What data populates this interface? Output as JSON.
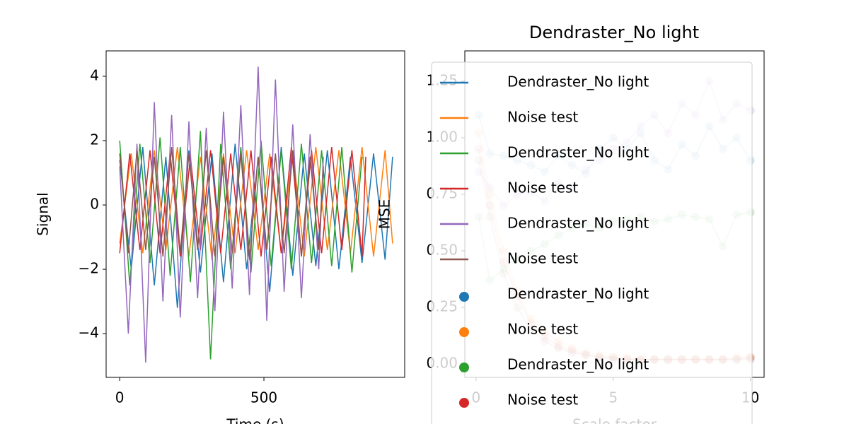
{
  "chart_data": [
    {
      "type": "line",
      "xlabel": "Time (s)",
      "ylabel": "Signal",
      "xlim": [
        -47,
        988
      ],
      "ylim": [
        -5.36,
        4.79
      ],
      "xticks": [
        0,
        500
      ],
      "yticks": [
        {
          "value": -4,
          "label": "−4"
        },
        {
          "value": -2,
          "label": "−2"
        },
        0,
        2,
        4
      ],
      "series": [
        {
          "color": "#1f77b4",
          "x": [
            0,
            40,
            80,
            120,
            160,
            200,
            240,
            280,
            320,
            360,
            400,
            440,
            480,
            520,
            560,
            600,
            640,
            680,
            720,
            760,
            800,
            840,
            880,
            920,
            946
          ],
          "values": [
            1.4,
            -2.0,
            1.8,
            -2.5,
            1.5,
            -3.2,
            1.7,
            -2.1,
            1.6,
            -2.4,
            1.9,
            -2.0,
            1.5,
            -2.7,
            1.8,
            -2.2,
            1.6,
            -1.9,
            1.7,
            -2.0,
            1.5,
            -1.8,
            1.6,
            -1.7,
            1.5
          ]
        },
        {
          "color": "#ff7f0e",
          "x": [
            0,
            40,
            80,
            120,
            160,
            200,
            240,
            280,
            320,
            360,
            400,
            440,
            480,
            520,
            560,
            600,
            640,
            680,
            720,
            760,
            800,
            840,
            880,
            920,
            946
          ],
          "values": [
            -1.2,
            1.6,
            -1.5,
            1.7,
            -1.4,
            1.8,
            -1.6,
            1.5,
            -1.7,
            1.6,
            -1.5,
            1.7,
            -1.4,
            1.6,
            -1.5,
            1.7,
            -1.6,
            1.8,
            -1.4,
            1.7,
            -1.5,
            1.8,
            -1.6,
            1.7,
            -1.2
          ]
        },
        {
          "color": "#2ca02c",
          "x": [
            0,
            35,
            70,
            105,
            140,
            175,
            210,
            245,
            280,
            315,
            350,
            385,
            420,
            455,
            490,
            525,
            560,
            595,
            630,
            665,
            700,
            735,
            770,
            805,
            840
          ],
          "values": [
            2.0,
            -2.5,
            1.9,
            -1.8,
            2.1,
            -2.2,
            1.8,
            -2.4,
            2.3,
            -4.8,
            1.9,
            -2.0,
            1.8,
            -2.1,
            2.0,
            -1.9,
            1.7,
            -2.0,
            1.9,
            -1.8,
            1.7,
            -1.9,
            1.8,
            -2.1,
            1.5
          ]
        },
        {
          "color": "#d62728",
          "x": [
            0,
            35,
            70,
            105,
            140,
            175,
            210,
            245,
            280,
            315,
            350,
            385,
            420,
            455,
            490,
            525,
            560,
            595,
            630,
            665,
            700,
            735,
            770,
            805,
            840,
            853
          ],
          "values": [
            -1.5,
            1.6,
            -1.4,
            1.7,
            -1.5,
            1.6,
            -1.6,
            1.5,
            -1.4,
            1.7,
            -1.5,
            1.6,
            -1.4,
            1.7,
            -1.6,
            1.5,
            -1.5,
            1.8,
            -1.6,
            1.7,
            -1.5,
            1.8,
            -1.4,
            1.7,
            -1.6,
            1.5
          ]
        },
        {
          "color": "#9467bd",
          "x": [
            0,
            30,
            60,
            90,
            120,
            150,
            180,
            210,
            240,
            270,
            300,
            330,
            360,
            390,
            420,
            450,
            480,
            510,
            540,
            570,
            600,
            630,
            660,
            690,
            706
          ],
          "values": [
            1.2,
            -4.0,
            1.9,
            -4.9,
            3.2,
            -3.0,
            2.8,
            -3.5,
            2.6,
            -2.9,
            2.4,
            -3.3,
            2.9,
            -2.6,
            3.1,
            -2.8,
            4.3,
            -3.6,
            3.9,
            -2.7,
            2.5,
            -2.9,
            2.2,
            -2.0,
            1.5
          ]
        },
        {
          "color": "#8c564b",
          "x": [
            0,
            30,
            60,
            90,
            120,
            150,
            180,
            210,
            240,
            270,
            300,
            330,
            360,
            390,
            420,
            450,
            480,
            510,
            540,
            570,
            600,
            630,
            660,
            690,
            706
          ],
          "values": [
            1.6,
            -1.5,
            1.7,
            -1.4,
            1.5,
            -1.6,
            1.8,
            -1.5,
            1.6,
            -1.4,
            1.7,
            -1.6,
            1.5,
            -1.5,
            1.6,
            -1.7,
            1.5,
            -1.4,
            1.6,
            -1.5,
            1.7,
            -1.6,
            1.5,
            -1.4,
            1.2
          ]
        }
      ]
    },
    {
      "type": "line",
      "title": "Dendraster_No light",
      "xlabel": "Scale factor",
      "ylabel": "MSE",
      "xlim": [
        -0.41,
        10.5
      ],
      "ylim": [
        -0.059,
        1.384
      ],
      "xticks": [
        0,
        5,
        10
      ],
      "yticks": [
        {
          "value": 0,
          "label": "0.00"
        },
        {
          "value": 0.25,
          "label": "0.25"
        },
        {
          "value": 0.5,
          "label": "0.50"
        },
        {
          "value": 0.75,
          "label": "0.75"
        },
        {
          "value": 1,
          "label": "1.00"
        },
        {
          "value": 1.25,
          "label": "1.25"
        }
      ],
      "x": [
        0.1,
        0.5,
        1,
        1.5,
        2,
        2.5,
        3,
        3.5,
        4,
        4.5,
        5,
        5.5,
        6,
        6.5,
        7,
        7.5,
        8,
        8.5,
        9,
        9.5,
        10
      ],
      "series": [
        {
          "name": "Dendraster_No light",
          "color": "#1f77b4",
          "values": [
            1.1,
            0.93,
            0.92,
            0.9,
            0.88,
            0.85,
            0.92,
            0.88,
            0.84,
            0.95,
            1.0,
            0.95,
            1.02,
            0.9,
            0.86,
            0.97,
            0.92,
            1.05,
            0.95,
            1.0,
            0.9
          ]
        },
        {
          "name": "Noise test",
          "color": "#ff7f0e",
          "values": [
            1.02,
            0.75,
            0.5,
            0.32,
            0.2,
            0.14,
            0.1,
            0.07,
            0.05,
            0.04,
            0.03,
            0.03,
            0.02,
            0.02,
            0.02,
            0.02,
            0.02,
            0.02,
            0.02,
            0.03,
            0.03
          ]
        },
        {
          "name": "Dendraster_No light",
          "color": "#2ca02c",
          "values": [
            0.65,
            0.37,
            0.42,
            0.47,
            0.5,
            0.53,
            0.57,
            0.6,
            0.62,
            0.6,
            0.63,
            0.64,
            0.65,
            0.63,
            0.64,
            0.66,
            0.65,
            0.64,
            0.52,
            0.66,
            0.67
          ]
        },
        {
          "name": "Noise test",
          "color": "#d62728",
          "values": [
            0.95,
            0.7,
            0.45,
            0.3,
            0.18,
            0.12,
            0.08,
            0.06,
            0.04,
            0.03,
            0.03,
            0.02,
            0.02,
            0.02,
            0.02,
            0.02,
            0.02,
            0.02,
            0.02,
            0.02,
            0.03
          ]
        },
        {
          "name": "Dendraster_No light",
          "color": "#9467bd",
          "values": [
            0.85,
            0.78,
            0.7,
            0.75,
            0.76,
            0.72,
            0.8,
            0.78,
            0.86,
            0.9,
            0.95,
            0.98,
            1.05,
            1.1,
            1.02,
            1.15,
            1.1,
            1.25,
            1.08,
            1.15,
            1.12
          ]
        },
        {
          "name": "Noise test",
          "color": "#8c564b",
          "values": [
            0.9,
            0.65,
            0.4,
            0.25,
            0.15,
            0.1,
            0.07,
            0.05,
            0.04,
            0.03,
            0.02,
            0.02,
            0.02,
            0.02,
            0.02,
            0.02,
            0.02,
            0.02,
            0.02,
            0.02,
            0.02
          ]
        }
      ],
      "scatter_legend": [
        {
          "name": "Dendraster_No light",
          "color": "#1f77b4"
        },
        {
          "name": "Noise test",
          "color": "#ff7f0e"
        },
        {
          "name": "Dendraster_No light",
          "color": "#2ca02c"
        },
        {
          "name": "Noise test",
          "color": "#d62728"
        }
      ]
    }
  ]
}
